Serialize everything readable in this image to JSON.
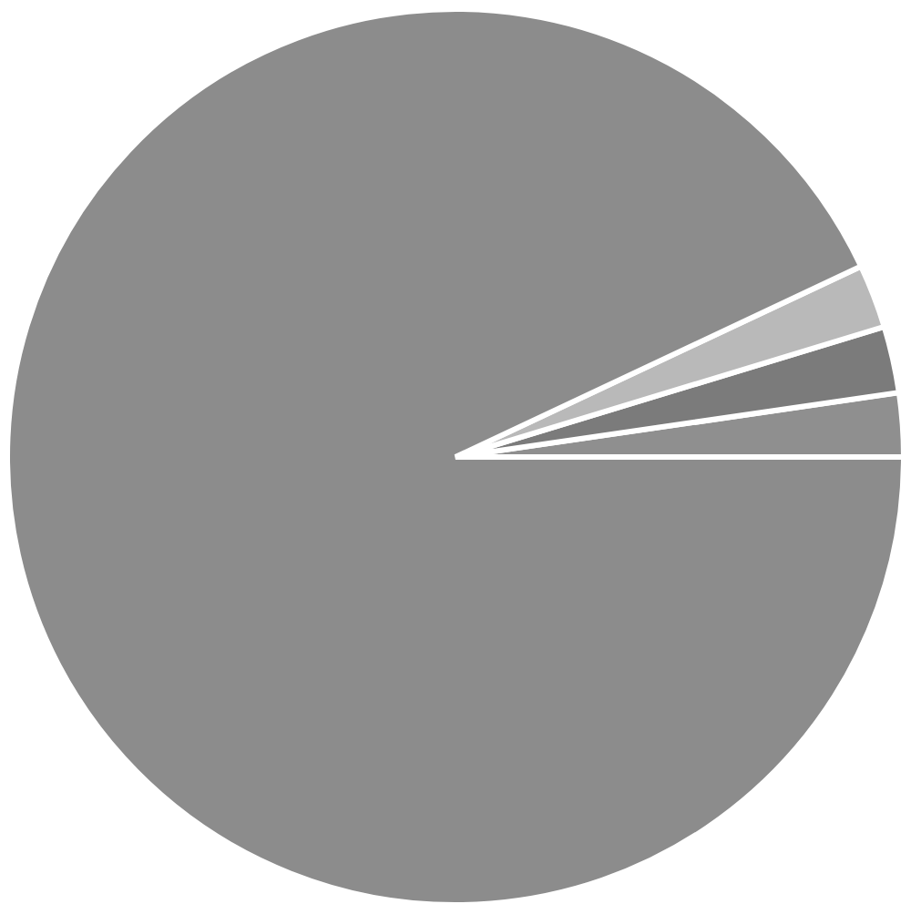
{
  "chart_data": {
    "type": "pie",
    "categories": [
      null,
      null,
      null,
      null
    ],
    "values": [
      2.3,
      2.4,
      2.3,
      93.0
    ],
    "colors": [
      "#8f8f8f",
      "#7b7b7b",
      "#b9b9b9",
      "#8c8c8c"
    ],
    "legend": false
  }
}
